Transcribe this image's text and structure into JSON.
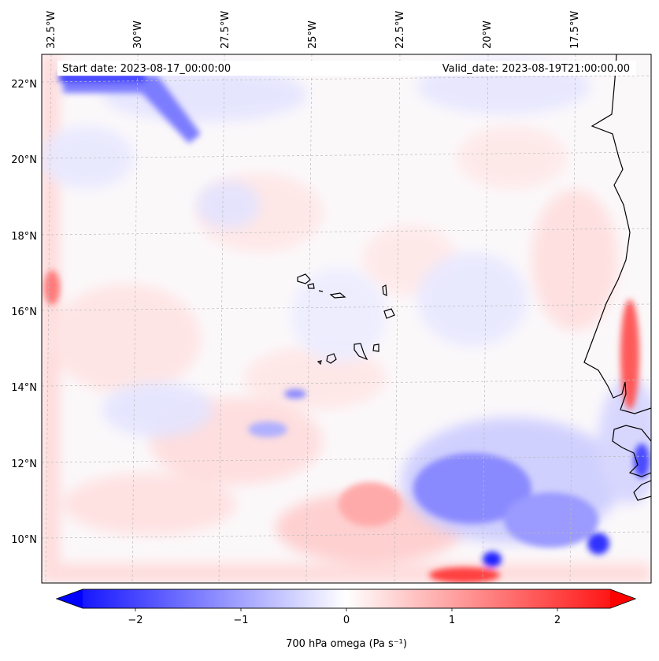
{
  "header": {
    "start_date": "Start date: 2023-08-17_00:00:00",
    "valid_date": "Valid_date: 2023-08-19T21:00:00.00"
  },
  "axes": {
    "lon_labels": [
      "32.5°W",
      "30°W",
      "27.5°W",
      "25°W",
      "22.5°W",
      "20°W",
      "17.5°W"
    ],
    "lat_labels": [
      "22°N",
      "20°N",
      "18°N",
      "16°N",
      "14°N",
      "12°N",
      "10°N"
    ]
  },
  "colorbar": {
    "label": "700 hPa omega (Pa s⁻¹)",
    "ticks": [
      "−2",
      "−1",
      "0",
      "1",
      "2"
    ],
    "range": [
      -2.5,
      2.5
    ],
    "min_color": "#0000ff",
    "mid_color": "#ffffff",
    "max_color": "#ff0000"
  },
  "colors": {
    "frame": "#000000",
    "grid": "#bbbbbb",
    "coast": "#000000"
  }
}
